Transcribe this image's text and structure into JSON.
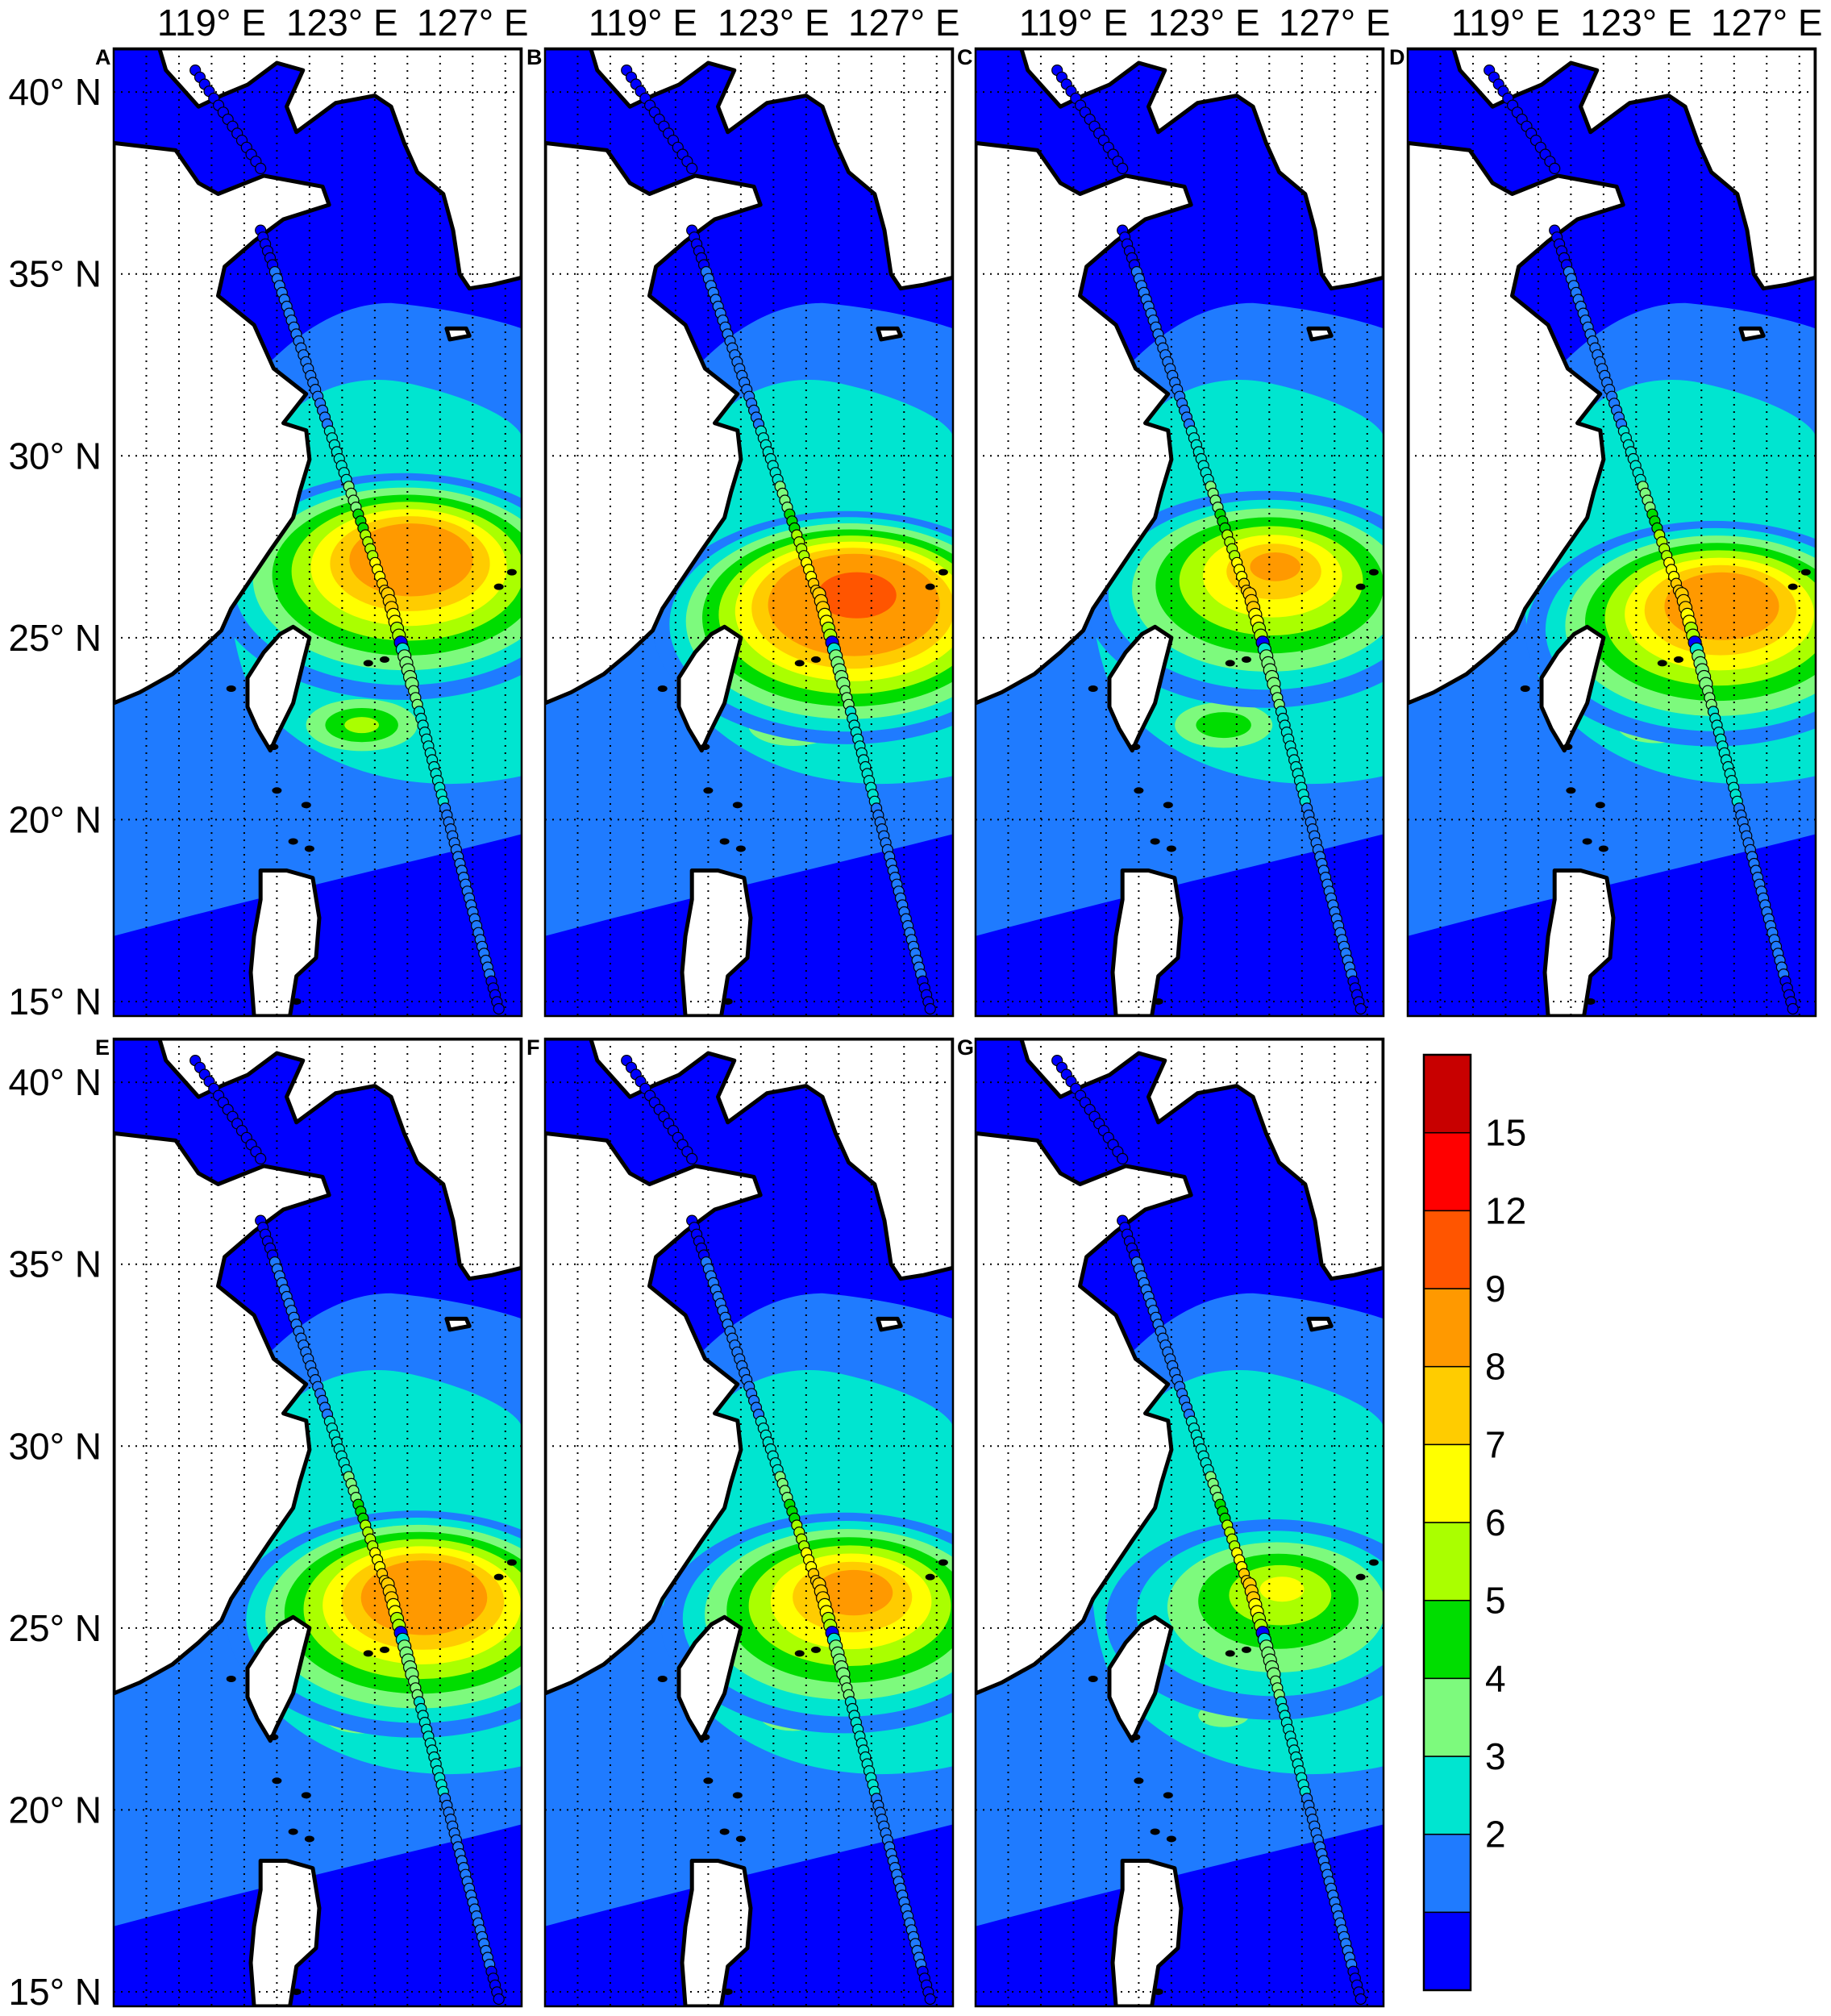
{
  "map": {
    "lon_ticks": [
      "119° E",
      "123° E",
      "127° E"
    ],
    "lon_tick_values": [
      119,
      123,
      127
    ],
    "lat_ticks": [
      "40° N",
      "35° N",
      "30° N",
      "25° N",
      "20° N",
      "15° N"
    ],
    "lat_tick_values": [
      40,
      35,
      30,
      25,
      20,
      15
    ],
    "lon_range": [
      116,
      128.5
    ],
    "lat_range": [
      14.6,
      41.2
    ],
    "grid": "dotted"
  },
  "panels": [
    {
      "label": "A",
      "peak": 11.5,
      "center": [
        125.2,
        27.4
      ],
      "south_blob": 6.3
    },
    {
      "label": "B",
      "peak": 13.5,
      "center": [
        125.6,
        26.3
      ],
      "south_blob": 5.4
    },
    {
      "label": "C",
      "peak": 9.4,
      "center": [
        125.2,
        27.0
      ],
      "south_blob": 5.7
    },
    {
      "label": "D",
      "peak": 11.2,
      "center": [
        125.7,
        26.1
      ],
      "south_blob": 5.0
    },
    {
      "label": "E",
      "peak": 11.6,
      "center": [
        125.6,
        26.1
      ],
      "south_blob": 5.0
    },
    {
      "label": "F",
      "peak": 10.1,
      "center": [
        125.5,
        26.1
      ],
      "south_blob": 4.7
    },
    {
      "label": "G",
      "peak": 7.2,
      "center": [
        125.4,
        26.1
      ],
      "south_blob": 4.3
    }
  ],
  "track": {
    "legs": [
      {
        "from": [
          118.5,
          40.6
        ],
        "to": [
          120.5,
          37.9
        ]
      },
      {
        "from": [
          120.5,
          36.2
        ],
        "to": [
          124.3,
          26.3
        ]
      },
      {
        "from": [
          124.4,
          26.2
        ],
        "to": [
          127.8,
          14.8
        ]
      }
    ],
    "profile": [
      {
        "lat": 36.2,
        "value": 1.9
      },
      {
        "lat": 33.0,
        "value": 2.2
      },
      {
        "lat": 31.5,
        "value": 2.8
      },
      {
        "lat": 30.0,
        "value": 3.2
      },
      {
        "lat": 29.0,
        "value": 4.2
      },
      {
        "lat": 28.0,
        "value": 5.8
      },
      {
        "lat": 27.0,
        "value": 7.2
      },
      {
        "lat": 26.3,
        "value": 8.6
      },
      {
        "lat": 25.8,
        "value": 8.0
      },
      {
        "lat": 25.0,
        "value": 6.5
      },
      {
        "lat": 24.9,
        "value": 1.0
      },
      {
        "lat": 24.6,
        "value": 4.5
      },
      {
        "lat": 23.0,
        "value": 4.0
      },
      {
        "lat": 21.0,
        "value": 3.2
      },
      {
        "lat": 19.0,
        "value": 2.4
      },
      {
        "lat": 14.8,
        "value": 1.9
      }
    ]
  },
  "colorbar": {
    "labels": [
      "15",
      "12",
      "9",
      "8",
      "7",
      "6",
      "5",
      "4",
      "3",
      "2"
    ],
    "levels": [
      1,
      2,
      3,
      4,
      5,
      6,
      7,
      8,
      9,
      12,
      15,
      18
    ],
    "colors": [
      "#0000ff",
      "#1f7bff",
      "#00e5d0",
      "#7dfa7d",
      "#00dd00",
      "#aaff00",
      "#ffff00",
      "#ffcc00",
      "#ff9900",
      "#ff5500",
      "#ff0000",
      "#c80000"
    ]
  }
}
